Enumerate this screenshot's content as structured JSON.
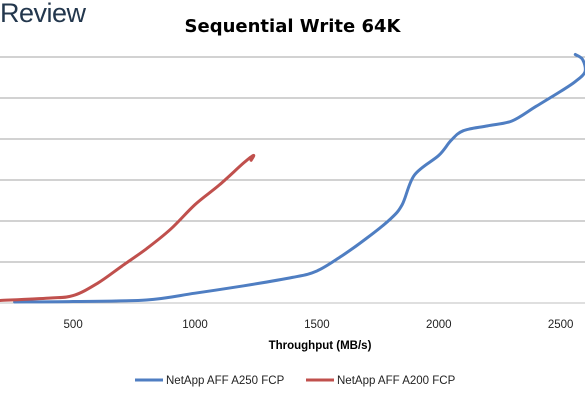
{
  "brand": {
    "text": "Review"
  },
  "chart_data": {
    "type": "line",
    "title": "Sequential Write 64K",
    "xlabel": "Throughput (MB/s)",
    "ylabel": "",
    "xlim": [
      200,
      2600
    ],
    "ylim": [
      0,
      5
    ],
    "xticks": [
      500,
      1000,
      1500,
      2000,
      2500
    ],
    "grid": "horizontal",
    "legend_position": "bottom",
    "series": [
      {
        "name": "NetApp AFF A250 FCP",
        "color": "#4f7ec2",
        "points": [
          [
            260,
            0.02
          ],
          [
            500,
            0.03
          ],
          [
            800,
            0.06
          ],
          [
            1000,
            0.2
          ],
          [
            1200,
            0.35
          ],
          [
            1400,
            0.52
          ],
          [
            1500,
            0.65
          ],
          [
            1600,
            0.95
          ],
          [
            1700,
            1.3
          ],
          [
            1800,
            1.7
          ],
          [
            1850,
            2.0
          ],
          [
            1900,
            2.6
          ],
          [
            2000,
            3.0
          ],
          [
            2050,
            3.3
          ],
          [
            2100,
            3.5
          ],
          [
            2200,
            3.6
          ],
          [
            2300,
            3.7
          ],
          [
            2400,
            4.0
          ],
          [
            2500,
            4.3
          ],
          [
            2560,
            4.5
          ],
          [
            2600,
            4.7
          ],
          [
            2590,
            4.95
          ],
          [
            2560,
            5.05
          ]
        ]
      },
      {
        "name": "NetApp AFF A200 FCP",
        "color": "#c0504d",
        "points": [
          [
            200,
            0.05
          ],
          [
            400,
            0.1
          ],
          [
            500,
            0.15
          ],
          [
            600,
            0.4
          ],
          [
            700,
            0.75
          ],
          [
            800,
            1.1
          ],
          [
            900,
            1.5
          ],
          [
            1000,
            2.0
          ],
          [
            1100,
            2.4
          ],
          [
            1200,
            2.85
          ],
          [
            1240,
            3.0
          ],
          [
            1230,
            2.9
          ]
        ]
      }
    ]
  }
}
